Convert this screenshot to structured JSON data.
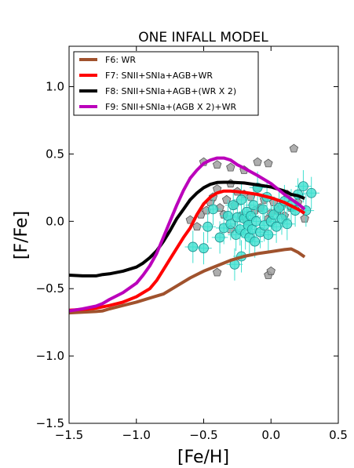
{
  "chart_data": {
    "type": "line",
    "title": "ONE INFALL MODEL",
    "xlabel": "[Fe/H]",
    "ylabel": "[F/Fe]",
    "xlim": [
      -1.5,
      0.5
    ],
    "ylim": [
      -1.5,
      1.3
    ],
    "x_ticks": [
      -1.5,
      -1.0,
      -0.5,
      0.0,
      0.5
    ],
    "x_tick_labels": [
      "−1.5",
      "−1.0",
      "−0.5",
      "0.0",
      "0.5"
    ],
    "y_ticks": [
      -1.5,
      -1.0,
      -0.5,
      0.0,
      0.5,
      1.0
    ],
    "y_tick_labels": [
      "−1.5",
      "−1.0",
      "−0.5",
      "0.0",
      "0.5",
      "1.0"
    ],
    "grid": false,
    "legend_position": "top-left",
    "series": [
      {
        "name": "F6: WR",
        "color": "#a0522d",
        "points": [
          [
            -1.5,
            -0.68
          ],
          [
            -1.4,
            -0.675
          ],
          [
            -1.3,
            -0.67
          ],
          [
            -1.25,
            -0.665
          ],
          [
            -1.2,
            -0.65
          ],
          [
            -1.1,
            -0.625
          ],
          [
            -1.0,
            -0.6
          ],
          [
            -0.9,
            -0.57
          ],
          [
            -0.8,
            -0.54
          ],
          [
            -0.7,
            -0.48
          ],
          [
            -0.6,
            -0.42
          ],
          [
            -0.5,
            -0.37
          ],
          [
            -0.4,
            -0.33
          ],
          [
            -0.3,
            -0.29
          ],
          [
            -0.2,
            -0.26
          ],
          [
            -0.1,
            -0.24
          ],
          [
            0.0,
            -0.225
          ],
          [
            0.1,
            -0.21
          ],
          [
            0.15,
            -0.205
          ],
          [
            0.2,
            -0.23
          ],
          [
            0.25,
            -0.265
          ]
        ]
      },
      {
        "name": "F7: SNII+SNIa+AGB+WR",
        "color": "#ff0000",
        "points": [
          [
            -1.5,
            -0.66
          ],
          [
            -1.4,
            -0.655
          ],
          [
            -1.3,
            -0.645
          ],
          [
            -1.2,
            -0.625
          ],
          [
            -1.1,
            -0.6
          ],
          [
            -1.0,
            -0.56
          ],
          [
            -0.95,
            -0.53
          ],
          [
            -0.9,
            -0.5
          ],
          [
            -0.85,
            -0.44
          ],
          [
            -0.8,
            -0.36
          ],
          [
            -0.75,
            -0.28
          ],
          [
            -0.7,
            -0.2
          ],
          [
            -0.65,
            -0.12
          ],
          [
            -0.6,
            -0.05
          ],
          [
            -0.55,
            0.05
          ],
          [
            -0.5,
            0.13
          ],
          [
            -0.45,
            0.18
          ],
          [
            -0.4,
            0.21
          ],
          [
            -0.35,
            0.225
          ],
          [
            -0.3,
            0.225
          ],
          [
            -0.25,
            0.22
          ],
          [
            -0.2,
            0.215
          ],
          [
            -0.1,
            0.2
          ],
          [
            0.0,
            0.175
          ],
          [
            0.1,
            0.14
          ],
          [
            0.2,
            0.09
          ],
          [
            0.25,
            0.06
          ]
        ]
      },
      {
        "name": "F8: SNII+SNIa+AGB+(WR X 2)",
        "color": "#000000",
        "points": [
          [
            -1.5,
            -0.4
          ],
          [
            -1.4,
            -0.405
          ],
          [
            -1.3,
            -0.405
          ],
          [
            -1.25,
            -0.395
          ],
          [
            -1.2,
            -0.39
          ],
          [
            -1.1,
            -0.37
          ],
          [
            -1.0,
            -0.34
          ],
          [
            -0.95,
            -0.31
          ],
          [
            -0.9,
            -0.27
          ],
          [
            -0.85,
            -0.22
          ],
          [
            -0.8,
            -0.15
          ],
          [
            -0.75,
            -0.07
          ],
          [
            -0.7,
            0.02
          ],
          [
            -0.65,
            0.09
          ],
          [
            -0.6,
            0.16
          ],
          [
            -0.55,
            0.21
          ],
          [
            -0.5,
            0.25
          ],
          [
            -0.45,
            0.275
          ],
          [
            -0.4,
            0.288
          ],
          [
            -0.35,
            0.29
          ],
          [
            -0.3,
            0.29
          ],
          [
            -0.2,
            0.285
          ],
          [
            -0.1,
            0.27
          ],
          [
            0.0,
            0.255
          ],
          [
            0.1,
            0.225
          ],
          [
            0.15,
            0.2
          ],
          [
            0.2,
            0.19
          ],
          [
            0.25,
            0.17
          ]
        ]
      },
      {
        "name": "F9: SNII+SNIa+(AGB X 2)+WR",
        "color": "#bb00bb",
        "points": [
          [
            -1.5,
            -0.665
          ],
          [
            -1.4,
            -0.65
          ],
          [
            -1.3,
            -0.63
          ],
          [
            -1.25,
            -0.61
          ],
          [
            -1.2,
            -0.58
          ],
          [
            -1.1,
            -0.53
          ],
          [
            -1.0,
            -0.46
          ],
          [
            -0.95,
            -0.4
          ],
          [
            -0.9,
            -0.33
          ],
          [
            -0.85,
            -0.24
          ],
          [
            -0.8,
            -0.12
          ],
          [
            -0.75,
            0.0
          ],
          [
            -0.7,
            0.12
          ],
          [
            -0.65,
            0.23
          ],
          [
            -0.6,
            0.32
          ],
          [
            -0.55,
            0.38
          ],
          [
            -0.5,
            0.43
          ],
          [
            -0.45,
            0.455
          ],
          [
            -0.4,
            0.47
          ],
          [
            -0.35,
            0.47
          ],
          [
            -0.3,
            0.455
          ],
          [
            -0.25,
            0.42
          ],
          [
            -0.2,
            0.395
          ],
          [
            -0.1,
            0.34
          ],
          [
            0.0,
            0.28
          ],
          [
            0.1,
            0.2
          ],
          [
            0.2,
            0.13
          ],
          [
            0.25,
            0.09
          ]
        ]
      }
    ],
    "scatter_gray": {
      "color": "#a0a0a0",
      "points": [
        [
          -0.5,
          0.44
        ],
        [
          -0.4,
          0.42
        ],
        [
          -0.3,
          0.4
        ],
        [
          -0.2,
          0.38
        ],
        [
          -0.1,
          0.44
        ],
        [
          -0.02,
          0.43
        ],
        [
          0.17,
          0.54
        ],
        [
          -0.55,
          -0.04
        ],
        [
          -0.52,
          0.05
        ],
        [
          -0.48,
          0.08
        ],
        [
          -0.45,
          0.14
        ],
        [
          -0.43,
          0.18
        ],
        [
          -0.4,
          0.24
        ],
        [
          -0.38,
          0.1
        ],
        [
          -0.35,
          0.05
        ],
        [
          -0.33,
          0.16
        ],
        [
          -0.3,
          0.28
        ],
        [
          -0.27,
          0.12
        ],
        [
          -0.25,
          0.22
        ],
        [
          -0.22,
          0.04
        ],
        [
          -0.2,
          0.2
        ],
        [
          -0.18,
          0.0
        ],
        [
          -0.15,
          0.18
        ],
        [
          -0.12,
          0.08
        ],
        [
          -0.1,
          0.25
        ],
        [
          -0.08,
          0.1
        ],
        [
          -0.05,
          0.16
        ],
        [
          -0.02,
          0.02
        ],
        [
          0.0,
          0.06
        ],
        [
          0.02,
          0.14
        ],
        [
          0.05,
          0.08
        ],
        [
          0.08,
          0.11
        ],
        [
          0.1,
          0.04
        ],
        [
          0.12,
          0.2
        ],
        [
          0.15,
          0.1
        ],
        [
          0.2,
          0.14
        ],
        [
          0.25,
          0.02
        ],
        [
          -0.4,
          -0.38
        ],
        [
          -0.02,
          -0.4
        ],
        [
          0.0,
          -0.37
        ],
        [
          -0.3,
          -0.06
        ],
        [
          -0.6,
          0.01
        ]
      ]
    },
    "scatter_cyan": {
      "color": "#40e0d0",
      "points": [
        {
          "x": -0.58,
          "y": -0.19,
          "ex": 0.06,
          "ey": 0.12
        },
        {
          "x": -0.5,
          "y": -0.2,
          "ex": 0.06,
          "ey": 0.12
        },
        {
          "x": -0.47,
          "y": -0.04,
          "ex": 0.06,
          "ey": 0.12
        },
        {
          "x": -0.43,
          "y": 0.09,
          "ex": 0.06,
          "ey": 0.12
        },
        {
          "x": -0.38,
          "y": -0.12,
          "ex": 0.06,
          "ey": 0.12
        },
        {
          "x": -0.35,
          "y": -0.05,
          "ex": 0.06,
          "ey": 0.12
        },
        {
          "x": -0.32,
          "y": 0.04,
          "ex": 0.06,
          "ey": 0.12
        },
        {
          "x": -0.3,
          "y": -0.02,
          "ex": 0.06,
          "ey": 0.12
        },
        {
          "x": -0.28,
          "y": 0.12,
          "ex": 0.06,
          "ey": 0.12
        },
        {
          "x": -0.27,
          "y": -0.32,
          "ex": 0.06,
          "ey": 0.12
        },
        {
          "x": -0.26,
          "y": -0.1,
          "ex": 0.06,
          "ey": 0.12
        },
        {
          "x": -0.25,
          "y": 0.03,
          "ex": 0.06,
          "ey": 0.12
        },
        {
          "x": -0.23,
          "y": -0.06,
          "ex": 0.06,
          "ey": 0.12
        },
        {
          "x": -0.22,
          "y": 0.16,
          "ex": 0.06,
          "ey": 0.12
        },
        {
          "x": -0.2,
          "y": 0.02,
          "ex": 0.06,
          "ey": 0.12
        },
        {
          "x": -0.19,
          "y": -0.09,
          "ex": 0.06,
          "ey": 0.12
        },
        {
          "x": -0.18,
          "y": 0.07,
          "ex": 0.06,
          "ey": 0.12
        },
        {
          "x": -0.17,
          "y": -0.03,
          "ex": 0.06,
          "ey": 0.12
        },
        {
          "x": -0.16,
          "y": -0.12,
          "ex": 0.06,
          "ey": 0.12
        },
        {
          "x": -0.15,
          "y": 0.04,
          "ex": 0.06,
          "ey": 0.12
        },
        {
          "x": -0.14,
          "y": -0.06,
          "ex": 0.06,
          "ey": 0.12
        },
        {
          "x": -0.13,
          "y": 0.12,
          "ex": 0.06,
          "ey": 0.12
        },
        {
          "x": -0.12,
          "y": -0.15,
          "ex": 0.06,
          "ey": 0.12
        },
        {
          "x": -0.11,
          "y": 0.0,
          "ex": 0.06,
          "ey": 0.12
        },
        {
          "x": -0.1,
          "y": 0.25,
          "ex": 0.06,
          "ey": 0.12
        },
        {
          "x": -0.08,
          "y": -0.08,
          "ex": 0.06,
          "ey": 0.12
        },
        {
          "x": -0.06,
          "y": 0.09,
          "ex": 0.06,
          "ey": 0.12
        },
        {
          "x": -0.05,
          "y": -0.03,
          "ex": 0.06,
          "ey": 0.12
        },
        {
          "x": -0.03,
          "y": 0.18,
          "ex": 0.06,
          "ey": 0.12
        },
        {
          "x": -0.02,
          "y": -0.1,
          "ex": 0.06,
          "ey": 0.12
        },
        {
          "x": 0.0,
          "y": 0.0,
          "ex": 0.06,
          "ey": 0.12
        },
        {
          "x": 0.02,
          "y": 0.05,
          "ex": 0.06,
          "ey": 0.12
        },
        {
          "x": 0.04,
          "y": -0.04,
          "ex": 0.06,
          "ey": 0.12
        },
        {
          "x": 0.06,
          "y": 0.1,
          "ex": 0.06,
          "ey": 0.12
        },
        {
          "x": 0.08,
          "y": 0.02,
          "ex": 0.06,
          "ey": 0.12
        },
        {
          "x": 0.1,
          "y": 0.15,
          "ex": 0.06,
          "ey": 0.12
        },
        {
          "x": 0.12,
          "y": -0.02,
          "ex": 0.06,
          "ey": 0.12
        },
        {
          "x": 0.15,
          "y": 0.12,
          "ex": 0.06,
          "ey": 0.12
        },
        {
          "x": 0.18,
          "y": 0.08,
          "ex": 0.06,
          "ey": 0.12
        },
        {
          "x": 0.2,
          "y": 0.2,
          "ex": 0.06,
          "ey": 0.12
        },
        {
          "x": 0.24,
          "y": 0.26,
          "ex": 0.06,
          "ey": 0.12
        },
        {
          "x": 0.26,
          "y": 0.08,
          "ex": 0.06,
          "ey": 0.12
        },
        {
          "x": 0.3,
          "y": 0.21,
          "ex": 0.06,
          "ey": 0.12
        },
        {
          "x": -0.22,
          "y": -0.26,
          "ex": 0.06,
          "ey": 0.12
        }
      ]
    }
  }
}
